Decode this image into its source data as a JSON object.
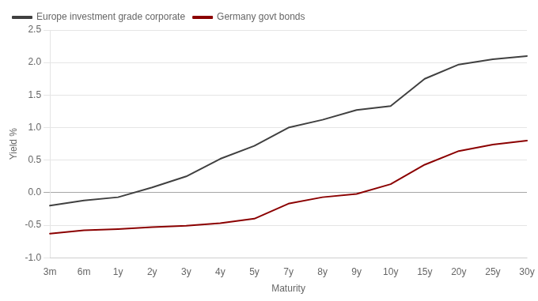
{
  "chart_data": {
    "type": "line",
    "x_title": "Maturity",
    "y_title": "Yield %",
    "categories": [
      "3m",
      "6m",
      "1y",
      "2y",
      "3y",
      "4y",
      "5y",
      "7y",
      "8y",
      "9y",
      "10y",
      "15y",
      "20y",
      "25y",
      "30y"
    ],
    "series": [
      {
        "name": "Europe investment grade corporate",
        "color": "#404040",
        "values": [
          -0.2,
          -0.12,
          -0.07,
          0.08,
          0.25,
          0.52,
          0.72,
          1.0,
          1.12,
          1.27,
          1.33,
          1.75,
          1.97,
          2.05,
          2.1
        ]
      },
      {
        "name": "Germany govt bonds",
        "color": "#8b0000",
        "values": [
          -0.63,
          -0.58,
          -0.56,
          -0.53,
          -0.51,
          -0.47,
          -0.4,
          -0.17,
          -0.07,
          -0.02,
          0.13,
          0.43,
          0.64,
          0.74,
          0.8
        ]
      }
    ],
    "ylim": [
      -1.0,
      2.5
    ],
    "yticks": [
      {
        "value": -1.0,
        "label": "-1.0"
      },
      -0.5,
      {
        "value": 0.0,
        "label": "0.0"
      },
      0.5,
      {
        "value": 1.0,
        "label": "1.0"
      },
      1.5,
      {
        "value": 2.0,
        "label": "2.0"
      },
      2.5
    ],
    "grid": true,
    "legend": "upper left"
  }
}
